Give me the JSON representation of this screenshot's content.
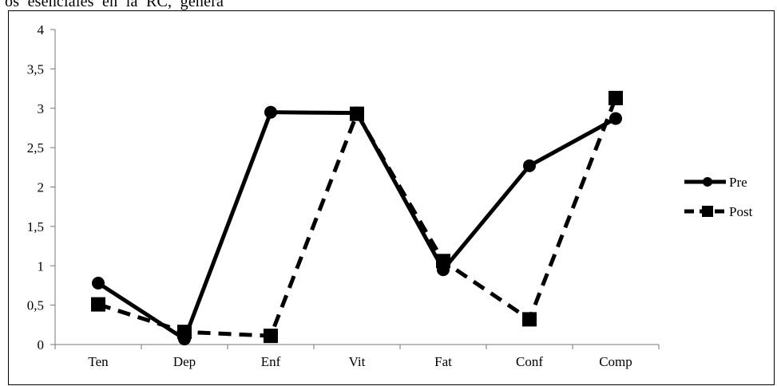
{
  "page": {
    "top_text": "os  esenciales  en  la  RC,  genera"
  },
  "chart_data": {
    "type": "line",
    "categories": [
      "Ten",
      "Dep",
      "Enf",
      "Vit",
      "Fat",
      "Conf",
      "Comp"
    ],
    "series": [
      {
        "name": "Pre",
        "values": [
          0.78,
          0.07,
          2.95,
          2.94,
          0.95,
          2.27,
          2.87
        ],
        "line_style": "solid",
        "marker": "circle"
      },
      {
        "name": "Post",
        "values": [
          0.51,
          0.16,
          0.11,
          2.93,
          1.06,
          0.32,
          3.13
        ],
        "line_style": "dashed",
        "marker": "square"
      }
    ],
    "ylim": [
      0,
      4
    ],
    "yticks": [
      "0",
      "0,5",
      "1",
      "1,5",
      "2",
      "2,5",
      "3",
      "3,5",
      "4"
    ],
    "title": "",
    "xlabel": "",
    "ylabel": "",
    "grid": false,
    "legend_position": "right",
    "colors": {
      "line": "#000000",
      "background": "#ffffff"
    }
  }
}
